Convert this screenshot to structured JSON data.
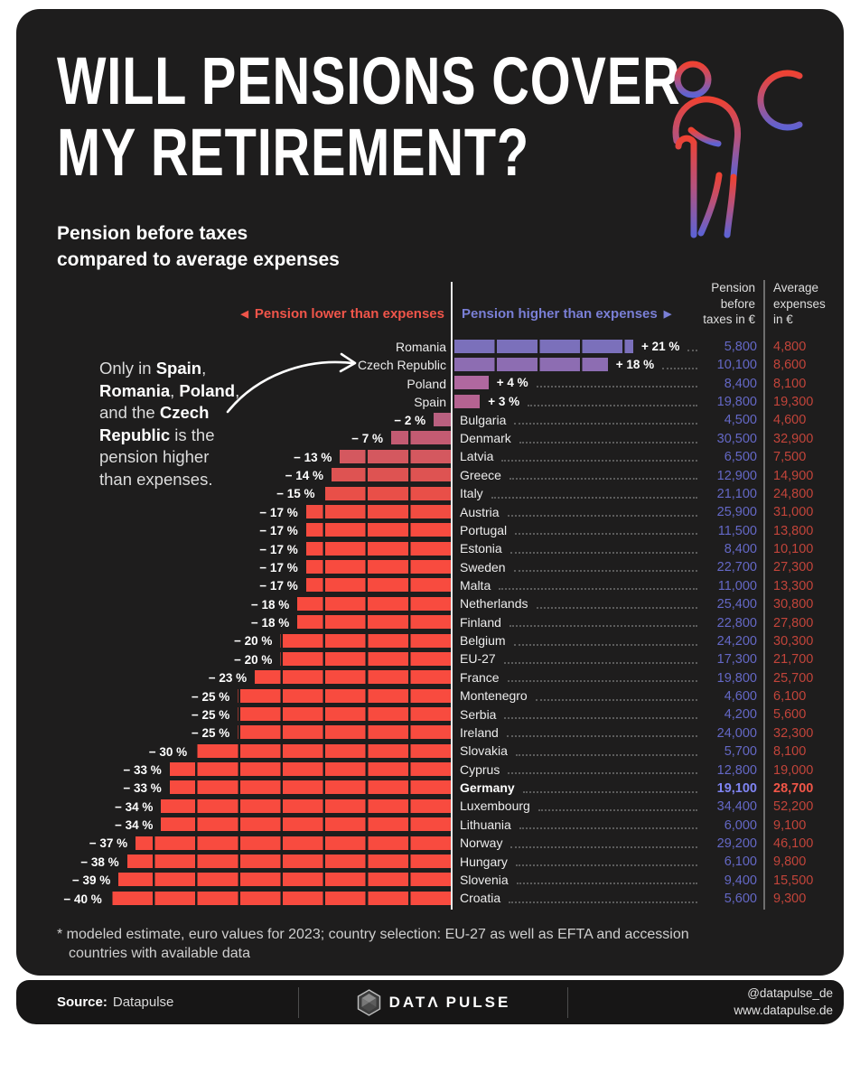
{
  "header": {
    "title_line1": "WILL PENSIONS COVER",
    "title_line2": "MY RETIREMENT?",
    "subtitle": "Pension before taxes\ncompared to average expenses"
  },
  "icons": {
    "left_triangle": "◀",
    "right_triangle": "▶",
    "hero": "old-person-with-cane-and-euro"
  },
  "legend": {
    "lower_label": "Pension lower than expenses",
    "higher_label": "Pension higher than expenses",
    "lower_color": "#f0554a",
    "higher_color": "#7a7fd6"
  },
  "columns": {
    "pension_header": "Pension\nbefore\ntaxes in €",
    "expenses_header": "Average\nexpenses\nin €"
  },
  "annotation": {
    "lines": [
      [
        {
          "t": "Only in ",
          "b": false
        },
        {
          "t": "Spain",
          "b": true
        },
        {
          "t": ",",
          "b": false
        }
      ],
      [
        {
          "t": "Romania",
          "b": true
        },
        {
          "t": ", ",
          "b": false
        },
        {
          "t": "Poland",
          "b": true
        },
        {
          "t": ",",
          "b": false
        }
      ],
      [
        {
          "t": "and the ",
          "b": false
        },
        {
          "t": "Czech",
          "b": true
        }
      ],
      [
        {
          "t": "Republic",
          "b": true
        },
        {
          "t": " is the",
          "b": false
        }
      ],
      [
        {
          "t": "pension higher",
          "b": false
        }
      ],
      [
        {
          "t": "than expenses.",
          "b": false
        }
      ]
    ]
  },
  "chart_data": {
    "type": "bar",
    "orientation": "horizontal-diverging",
    "unit": "% difference of pension vs. average expenses",
    "axis": {
      "center": 0,
      "segment_step_percent": 5
    },
    "divider_color": "#1e1d1d",
    "value_colors": {
      "pension": "#6468c6",
      "expenses": "#c2443a",
      "pension_bold": "#7f84f2",
      "expenses_bold": "#f25648"
    },
    "rows": [
      {
        "country": "Romania",
        "pct": 21,
        "label": "+ 21 %",
        "pension": "5,800",
        "expenses": "4,800",
        "color": "#7b70bb",
        "bold": false
      },
      {
        "country": "Czech Republic",
        "pct": 18,
        "label": "+ 18 %",
        "pension": "10,100",
        "expenses": "8,600",
        "color": "#8d6db2",
        "bold": false
      },
      {
        "country": "Poland",
        "pct": 4,
        "label": "+ 4 %",
        "pension": "8,400",
        "expenses": "8,100",
        "color": "#b0689f",
        "bold": false
      },
      {
        "country": "Spain",
        "pct": 3,
        "label": "+ 3 %",
        "pension": "19,800",
        "expenses": "19,300",
        "color": "#b56391",
        "bold": false
      },
      {
        "country": "Bulgaria",
        "pct": -2,
        "label": "− 2 %",
        "pension": "4,500",
        "expenses": "4,600",
        "color": "#b96080",
        "bold": false
      },
      {
        "country": "Denmark",
        "pct": -7,
        "label": "− 7 %",
        "pension": "30,500",
        "expenses": "32,900",
        "color": "#c35b72",
        "bold": false
      },
      {
        "country": "Latvia",
        "pct": -13,
        "label": "− 13 %",
        "pension": "6,500",
        "expenses": "7,500",
        "color": "#d4585f",
        "bold": false
      },
      {
        "country": "Greece",
        "pct": -14,
        "label": "− 14 %",
        "pension": "12,900",
        "expenses": "14,900",
        "color": "#de5352",
        "bold": false
      },
      {
        "country": "Italy",
        "pct": -15,
        "label": "− 15 %",
        "pension": "21,100",
        "expenses": "24,800",
        "color": "#e94f48",
        "bold": false
      },
      {
        "country": "Austria",
        "pct": -17,
        "label": "− 17 %",
        "pension": "25,900",
        "expenses": "31,000",
        "color": "#f24c41",
        "bold": false
      },
      {
        "country": "Portugal",
        "pct": -17,
        "label": "− 17 %",
        "pension": "11,500",
        "expenses": "13,800",
        "color": "#f84b3f",
        "bold": false
      },
      {
        "country": "Estonia",
        "pct": -17,
        "label": "− 17 %",
        "pension": "8,400",
        "expenses": "10,100",
        "color": "#f84b3f",
        "bold": false
      },
      {
        "country": "Sweden",
        "pct": -17,
        "label": "− 17 %",
        "pension": "22,700",
        "expenses": "27,300",
        "color": "#f84b3f",
        "bold": false
      },
      {
        "country": "Malta",
        "pct": -17,
        "label": "− 17 %",
        "pension": "11,000",
        "expenses": "13,300",
        "color": "#f84b3f",
        "bold": false
      },
      {
        "country": "Netherlands",
        "pct": -18,
        "label": "− 18 %",
        "pension": "25,400",
        "expenses": "30,800",
        "color": "#f84b3f",
        "bold": false
      },
      {
        "country": "Finland",
        "pct": -18,
        "label": "− 18 %",
        "pension": "22,800",
        "expenses": "27,800",
        "color": "#f84b3f",
        "bold": false
      },
      {
        "country": "Belgium",
        "pct": -20,
        "label": "− 20 %",
        "pension": "24,200",
        "expenses": "30,300",
        "color": "#f84b3f",
        "bold": false
      },
      {
        "country": "EU-27",
        "pct": -20,
        "label": "− 20 %",
        "pension": "17,300",
        "expenses": "21,700",
        "color": "#f84b3f",
        "bold": false
      },
      {
        "country": "France",
        "pct": -23,
        "label": "− 23 %",
        "pension": "19,800",
        "expenses": "25,700",
        "color": "#f84b3f",
        "bold": false
      },
      {
        "country": "Montenegro",
        "pct": -25,
        "label": "− 25 %",
        "pension": "4,600",
        "expenses": "6,100",
        "color": "#f84b3f",
        "bold": false
      },
      {
        "country": "Serbia",
        "pct": -25,
        "label": "− 25 %",
        "pension": "4,200",
        "expenses": "5,600",
        "color": "#f84b3f",
        "bold": false
      },
      {
        "country": "Ireland",
        "pct": -25,
        "label": "− 25 %",
        "pension": "24,000",
        "expenses": "32,300",
        "color": "#f84b3f",
        "bold": false
      },
      {
        "country": "Slovakia",
        "pct": -30,
        "label": "− 30 %",
        "pension": "5,700",
        "expenses": "8,100",
        "color": "#f84b3f",
        "bold": false
      },
      {
        "country": "Cyprus",
        "pct": -33,
        "label": "− 33 %",
        "pension": "12,800",
        "expenses": "19,000",
        "color": "#f84b3f",
        "bold": false
      },
      {
        "country": "Germany",
        "pct": -33,
        "label": "− 33 %",
        "pension": "19,100",
        "expenses": "28,700",
        "color": "#f84b3f",
        "bold": true
      },
      {
        "country": "Luxembourg",
        "pct": -34,
        "label": "− 34 %",
        "pension": "34,400",
        "expenses": "52,200",
        "color": "#f84b3f",
        "bold": false
      },
      {
        "country": "Lithuania",
        "pct": -34,
        "label": "− 34 %",
        "pension": "6,000",
        "expenses": "9,100",
        "color": "#f84b3f",
        "bold": false
      },
      {
        "country": "Norway",
        "pct": -37,
        "label": "− 37 %",
        "pension": "29,200",
        "expenses": "46,100",
        "color": "#f84b3f",
        "bold": false
      },
      {
        "country": "Hungary",
        "pct": -38,
        "label": "− 38 %",
        "pension": "6,100",
        "expenses": "9,800",
        "color": "#f84b3f",
        "bold": false
      },
      {
        "country": "Slovenia",
        "pct": -39,
        "label": "− 39 %",
        "pension": "9,400",
        "expenses": "15,500",
        "color": "#f84b3f",
        "bold": false
      },
      {
        "country": "Croatia",
        "pct": -40,
        "label": "− 40 %",
        "pension": "5,600",
        "expenses": "9,300",
        "color": "#f84b3f",
        "bold": false
      }
    ]
  },
  "footnote": {
    "line1": "* modeled estimate, euro values for 2023; country selection: EU-27 as well as EFTA and accession",
    "line2": "countries with available data"
  },
  "footer": {
    "source_label": "Source:",
    "source_value": "Datapulse",
    "brand_word1": "DATΛ",
    "brand_word2": "PULSE",
    "handle": "@datapulse_de",
    "url": "www.datapulse.de"
  }
}
